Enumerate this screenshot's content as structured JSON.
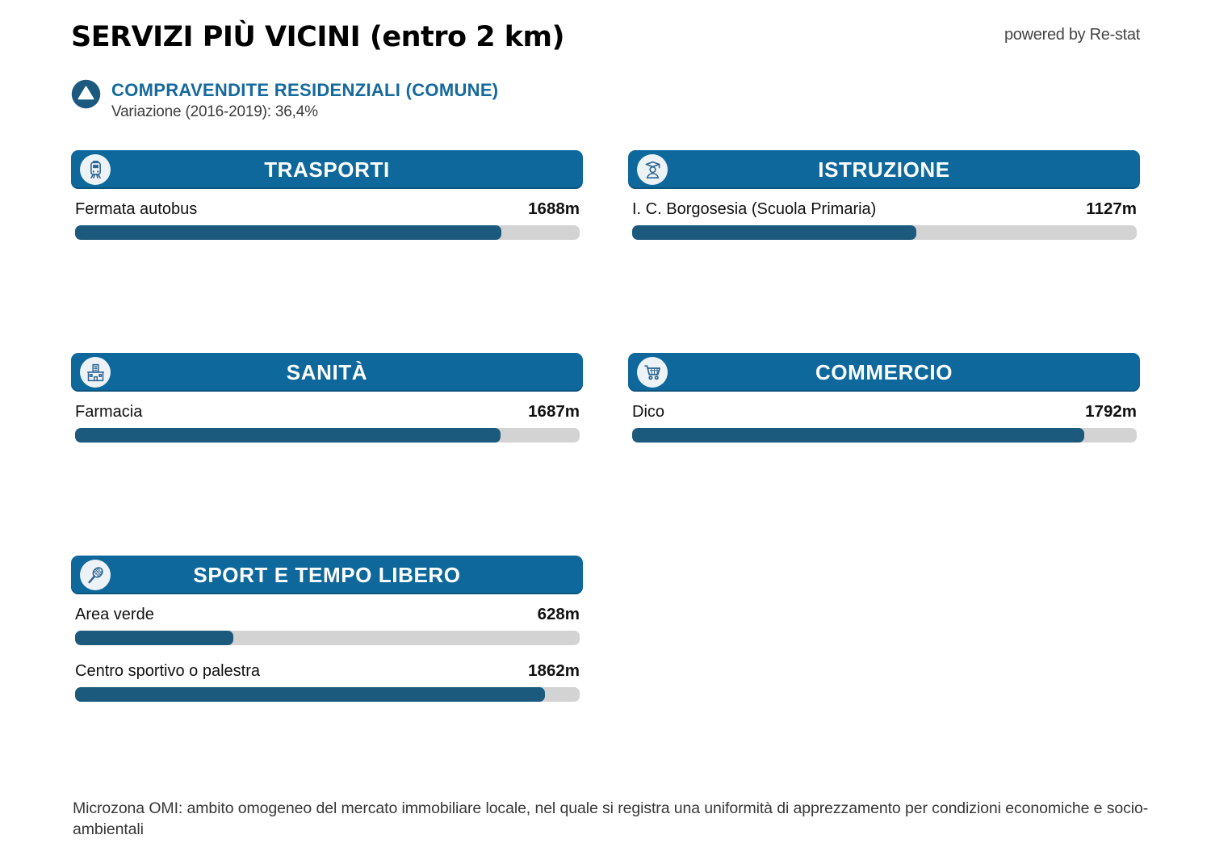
{
  "page": {
    "title": "SERVIZI PIÙ VICINI (entro 2 km)",
    "powered_by": "powered by Re-stat",
    "footer": "Microzona OMI: ambito omogeneo del mercato immobiliare locale, nel quale si registra una uniformità di apprezzamento per condizioni economiche e socio-ambientali"
  },
  "summary": {
    "icon": "trend-up-icon",
    "title": "COMPRAVENDITE RESIDENZIALI (COMUNE)",
    "subtitle": "Variazione (2016-2019): 36,4%"
  },
  "colors": {
    "header_blue": "#0F689B",
    "bar_fill": "#1C5A7D",
    "bar_track": "#D3D3D3",
    "accent_blue": "#15699C",
    "text_gray": "#3C3C3C"
  },
  "chart_data": {
    "type": "bar",
    "title": "SERVIZI PIÙ VICINI (entro 2 km)",
    "unit": "m",
    "max_distance_m": 2000,
    "orientation": "horizontal",
    "sections": [
      {
        "title": "TRASPORTI",
        "icon": "train-icon",
        "items": [
          {
            "label": "Fermata autobus",
            "value_m": 1688,
            "value_label": "1688m"
          }
        ]
      },
      {
        "title": "ISTRUZIONE",
        "icon": "graduate-icon",
        "items": [
          {
            "label": "I. C. Borgosesia (Scuola Primaria)",
            "value_m": 1127,
            "value_label": "1127m"
          }
        ]
      },
      {
        "title": "SANITÀ",
        "icon": "hospital-icon",
        "items": [
          {
            "label": "Farmacia",
            "value_m": 1687,
            "value_label": "1687m"
          }
        ]
      },
      {
        "title": "COMMERCIO",
        "icon": "cart-icon",
        "items": [
          {
            "label": "Dico",
            "value_m": 1792,
            "value_label": "1792m"
          }
        ]
      },
      {
        "title": "SPORT E TEMPO LIBERO",
        "icon": "racket-icon",
        "items": [
          {
            "label": "Area verde",
            "value_m": 628,
            "value_label": "628m"
          },
          {
            "label": "Centro sportivo o palestra",
            "value_m": 1862,
            "value_label": "1862m"
          }
        ]
      }
    ]
  }
}
